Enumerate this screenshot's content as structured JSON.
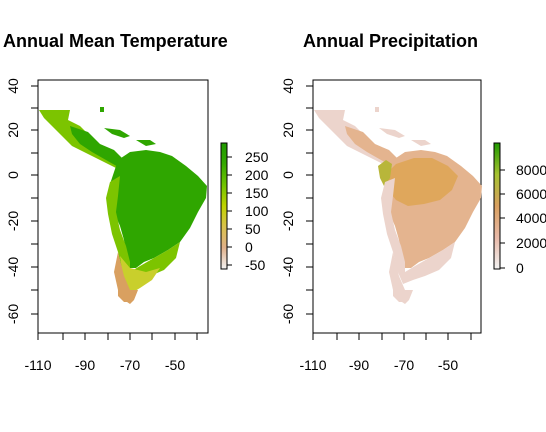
{
  "panels": [
    {
      "title": "Annual Mean Temperature",
      "x_ticks": [
        "-110",
        "-90",
        "-70",
        "-50"
      ],
      "y_ticks": [
        "40",
        "20",
        "0",
        "-20",
        "-40",
        "-60"
      ],
      "legend_ticks": [
        "250",
        "200",
        "150",
        "100",
        "50",
        "0",
        "-50"
      ],
      "legend_colors": [
        "#f2f2f2",
        "#e0b089",
        "#d9c24a",
        "#bfd200",
        "#6fc300",
        "#33a800",
        "#1f9a00"
      ]
    },
    {
      "title": "Annual Precipitation",
      "x_ticks": [
        "-110",
        "-90",
        "-70",
        "-50"
      ],
      "y_ticks": [
        "40",
        "20",
        "0",
        "-20",
        "-40",
        "-60"
      ],
      "legend_ticks": [
        "8000",
        "6000",
        "4000",
        "2000",
        "0"
      ],
      "legend_colors": [
        "#f2f2f2",
        "#e8b9a8",
        "#d9a060",
        "#a6c230",
        "#1f9a00"
      ]
    }
  ],
  "map_colors": {
    "temp_tropical": "#2fa600",
    "temp_warm": "#7cc400",
    "temp_subtropical": "#c9cf2c",
    "temp_cool": "#d9a060",
    "precip_dry": "#ecd4cc",
    "precip_moderate": "#e4b48f",
    "precip_wet": "#dfa75c",
    "precip_very_wet": "#b8b63a"
  }
}
